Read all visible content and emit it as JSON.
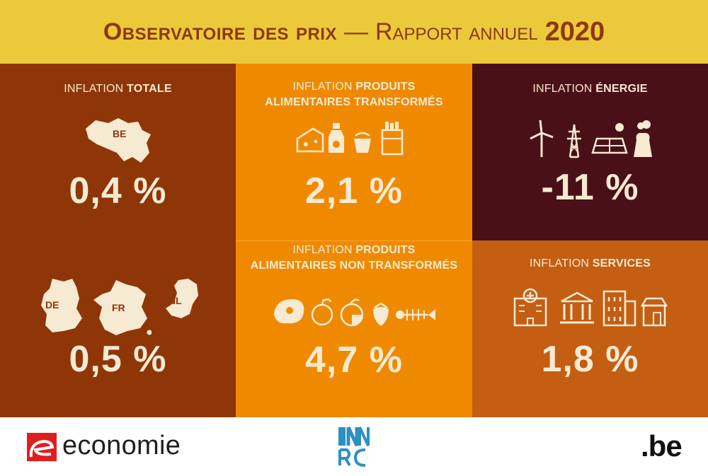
{
  "header": {
    "title_part1": "Observatoire des prix",
    "title_dash": "—",
    "title_part2": "Rapport annuel",
    "title_year": "2020"
  },
  "colors": {
    "header_bg": "#ecc93a",
    "header_text": "#8c3a0e",
    "total_bg": "#8f3609",
    "food_bg": "#ef8a00",
    "energy_bg": "#4a1018",
    "services_bg": "#c35e13",
    "text_light": "#f7ead2"
  },
  "panels": {
    "total": {
      "label_prefix": "INFLATION ",
      "label_bold": "TOTALE",
      "be_code": "BE",
      "be_value": "0,4 %",
      "neighbours": [
        "DE",
        "FR",
        "NL"
      ],
      "neighbours_value": "0,5 %"
    },
    "transformed": {
      "label_prefix": "INFLATION ",
      "label_bold_1": "PRODUITS",
      "label_bold_2": "ALIMENTAIRES TRANSFORMÉS",
      "value": "2,1 %",
      "icons": [
        "cheese-icon",
        "milk-bottle-icon",
        "yogurt-icon",
        "cigarettes-icon"
      ]
    },
    "non_transformed": {
      "label_prefix": "INFLATION ",
      "label_bold_1": "PRODUITS",
      "label_bold_2": "ALIMENTAIRES NON TRANSFORMÉS",
      "value": "4,7 %",
      "icons": [
        "meat-icon",
        "apple-icon",
        "orange-icon",
        "strawberry-icon",
        "fish-bone-icon"
      ]
    },
    "energy": {
      "label_prefix": "INFLATION ",
      "label_bold": "ÉNERGIE",
      "value": "-11 %",
      "icons": [
        "wind-turbine-icon",
        "pylon-icon",
        "solar-panel-icon",
        "power-plant-icon"
      ]
    },
    "services": {
      "label_prefix": "INFLATION ",
      "label_bold": "SERVICES",
      "value": "1,8 %",
      "icons": [
        "hospital-icon",
        "bank-icon",
        "office-building-icon",
        "shop-icon"
      ]
    }
  },
  "footer": {
    "economie_text": "economie",
    "inr_logo_text": "INRCN",
    "be_text": ".be"
  }
}
